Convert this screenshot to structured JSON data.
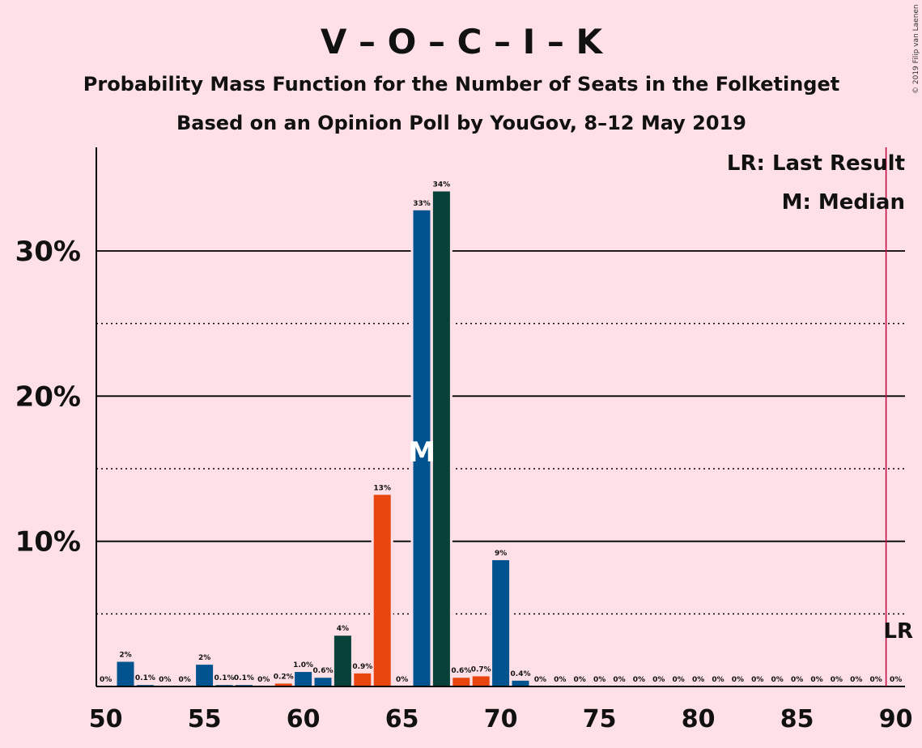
{
  "title": "V – O – C – I – K",
  "subtitle": "Probability Mass Function for the Number of Seats in the Folketinget",
  "subtitle2": "Based on an Opinion Poll by YouGov, 8–12 May 2019",
  "copyright": "© 2019 Filip van Laenen",
  "legend": {
    "lr": "LR: Last Result",
    "m": "M: Median"
  },
  "markers": {
    "median_label": "M",
    "last_result_label": "LR"
  },
  "colors": {
    "background": "#FFE0E6",
    "blue": "#00538E",
    "dark_green": "#08413A",
    "orange": "#E8450F",
    "last_result_line": "#C0003C"
  },
  "chart_data": {
    "type": "bar",
    "x": [
      50,
      51,
      52,
      53,
      54,
      55,
      56,
      57,
      58,
      59,
      60,
      61,
      62,
      63,
      64,
      65,
      66,
      67,
      68,
      69,
      70,
      71,
      72,
      73,
      74,
      75,
      76,
      77,
      78,
      79,
      80,
      81,
      82,
      83,
      84,
      85,
      86,
      87,
      88,
      89,
      90
    ],
    "values": [
      0,
      1.7,
      0.1,
      0,
      0,
      1.5,
      0.1,
      0.1,
      0,
      0.2,
      1.0,
      0.6,
      3.5,
      0.9,
      13.2,
      0,
      32.8,
      34.1,
      0.6,
      0.7,
      8.7,
      0.4,
      0,
      0,
      0,
      0,
      0,
      0,
      0,
      0,
      0,
      0,
      0,
      0,
      0,
      0,
      0,
      0,
      0,
      0,
      0
    ],
    "labels": [
      "0%",
      "2%",
      "0.1%",
      "0%",
      "0%",
      "2%",
      "0.1%",
      "0.1%",
      "0%",
      "0.2%",
      "1.0%",
      "0.6%",
      "4%",
      "0.9%",
      "13%",
      "0%",
      "33%",
      "34%",
      "0.6%",
      "0.7%",
      "9%",
      "0.4%",
      "0%",
      "0%",
      "0%",
      "0%",
      "0%",
      "0%",
      "0%",
      "0%",
      "0%",
      "0%",
      "0%",
      "0%",
      "0%",
      "0%",
      "0%",
      "0%",
      "0%",
      "0%",
      "0%"
    ],
    "bar_colors": [
      "blue",
      "blue",
      "blue",
      "blue",
      "blue",
      "blue",
      "blue",
      "blue",
      "blue",
      "orange",
      "blue",
      "blue",
      "dark_green",
      "orange",
      "orange",
      "blue",
      "blue",
      "dark_green",
      "orange",
      "orange",
      "blue",
      "blue",
      "blue",
      "blue",
      "blue",
      "blue",
      "blue",
      "blue",
      "blue",
      "blue",
      "blue",
      "blue",
      "blue",
      "blue",
      "blue",
      "blue",
      "blue",
      "blue",
      "blue",
      "blue",
      "blue"
    ],
    "x_ticks": [
      50,
      55,
      60,
      65,
      70,
      75,
      80,
      85,
      90
    ],
    "y_ticks": [
      10,
      20,
      30
    ],
    "y_tick_labels": [
      "10%",
      "20%",
      "30%"
    ],
    "y_minor_gridlines": [
      5,
      15,
      25
    ],
    "ylim": [
      0,
      37
    ],
    "xlim": [
      50,
      90
    ],
    "median": 66,
    "last_result": 90,
    "legend_position": "top-right"
  }
}
